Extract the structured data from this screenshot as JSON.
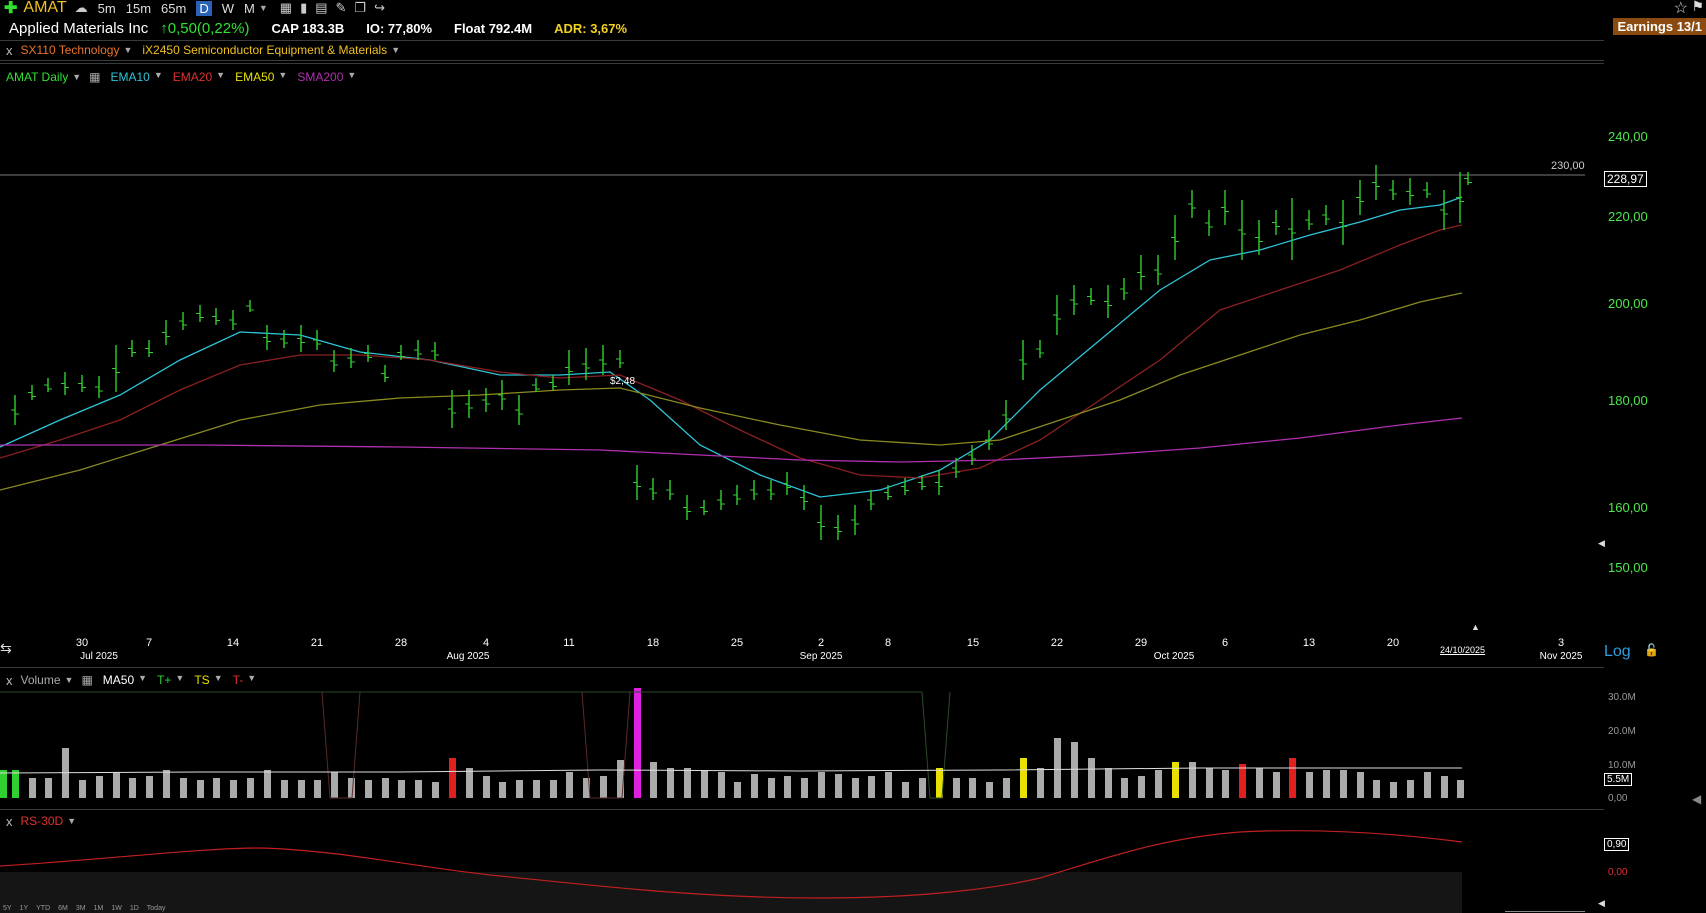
{
  "toolbar": {
    "symbol": "AMAT",
    "timeframes": [
      "5m",
      "15m",
      "65m",
      "D",
      "W",
      "M"
    ],
    "active_timeframe": "D"
  },
  "header": {
    "company": "Applied Materials Inc",
    "change": "↑0,50(0,22%)",
    "cap_label": "CAP",
    "cap_value": "183.3B",
    "io_label": "IO:",
    "io_value": "77,80%",
    "float_label": "Float",
    "float_value": "792.4M",
    "adr_label": "ADR:",
    "adr_value": "3,67%",
    "earnings": "Earnings 13/1"
  },
  "sector": {
    "sector_label": "SX110 Technology",
    "industry_label": "iX2450 Semiconductor Equipment & Materials"
  },
  "price_panel": {
    "title": "AMAT Daily",
    "indicators": [
      "EMA10",
      "EMA20",
      "EMA50",
      "SMA200"
    ],
    "indicator_colors": [
      "#2ec4d8",
      "#e03030",
      "#e8e000",
      "#b030b0"
    ],
    "price_axis": [
      "240,00",
      "220,00",
      "200,00",
      "180,00",
      "160,00",
      "150,00"
    ],
    "hline_label": "230,00",
    "last_price": "228,97",
    "annotation": "$2,48",
    "log_label": "Log",
    "x_days": [
      "30",
      "7",
      "14",
      "21",
      "28",
      "4",
      "11",
      "18",
      "25",
      "2",
      "8",
      "15",
      "22",
      "29",
      "6",
      "13",
      "20",
      "3"
    ],
    "x_months": [
      "Jul 2025",
      "Aug 2025",
      "Sep 2025",
      "Oct 2025",
      "Nov 2025"
    ],
    "current_date": "24/10/2025"
  },
  "volume_panel": {
    "title": "Volume",
    "indicators": [
      "MA50",
      "T+",
      "TS",
      "T-"
    ],
    "indicator_colors": [
      "#ffffff",
      "#30d030",
      "#e8e000",
      "#e03030"
    ],
    "axis": [
      "30.0M",
      "20.0M",
      "10.0M",
      "0,00"
    ],
    "ma_value": "5.5M"
  },
  "rs_panel": {
    "title": "RS-30D",
    "value": "0,90",
    "zero": "0,00"
  },
  "bottom_timeframes": [
    "5Y",
    "1Y",
    "YTD",
    "6M",
    "3M",
    "1M",
    "1W",
    "1D",
    "Today"
  ]
}
